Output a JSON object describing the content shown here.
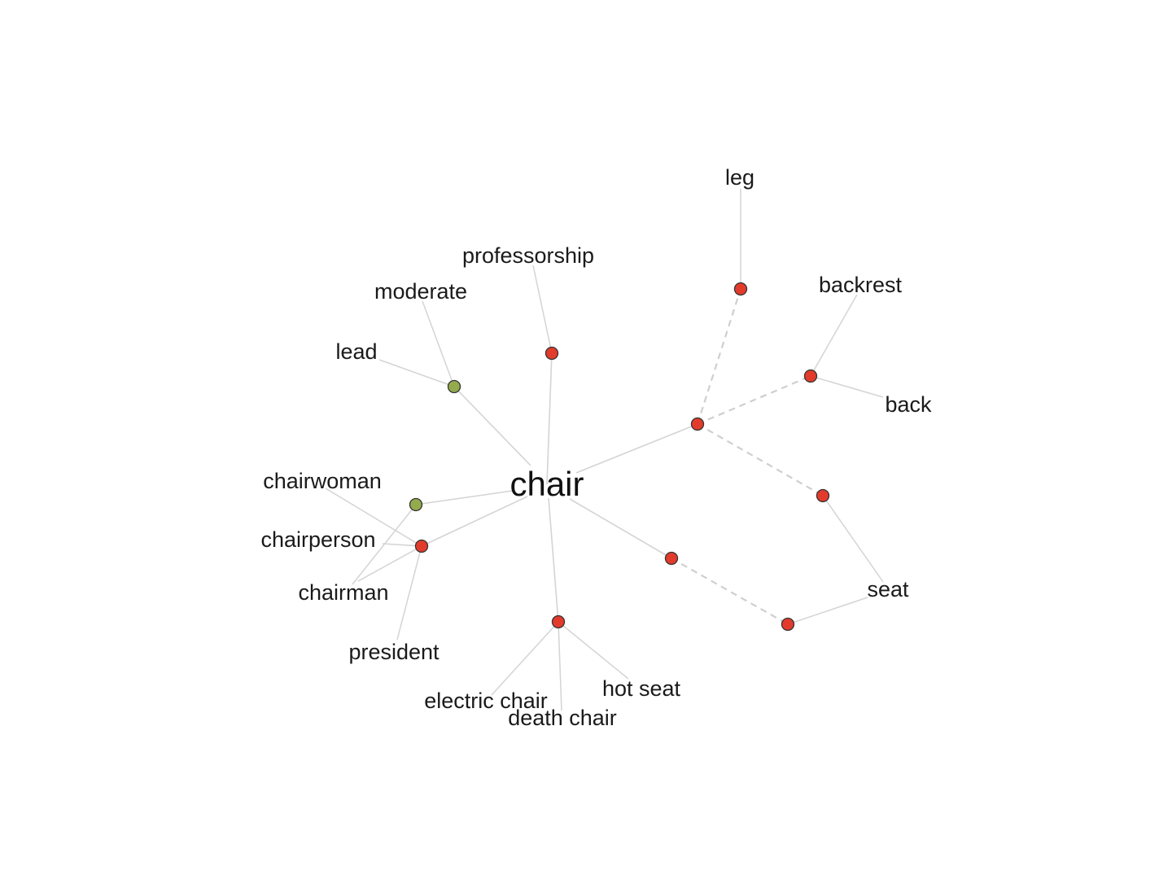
{
  "colors": {
    "red_node": "#e23b2c",
    "green_node": "#93ab4d"
  },
  "graph": {
    "center": {
      "label": "chair"
    },
    "nodes": [
      {
        "id": "n-professorship",
        "color": "red"
      },
      {
        "id": "n-moderate-lead",
        "color": "green"
      },
      {
        "id": "n-chairwoman",
        "color": "green"
      },
      {
        "id": "n-chairman",
        "color": "red"
      },
      {
        "id": "n-death",
        "color": "red"
      },
      {
        "id": "n-hub",
        "color": "red"
      },
      {
        "id": "n-leg",
        "color": "red"
      },
      {
        "id": "n-back",
        "color": "red"
      },
      {
        "id": "n-seat-upper",
        "color": "red"
      },
      {
        "id": "n-seat-mid",
        "color": "red"
      },
      {
        "id": "n-seat-lower",
        "color": "red"
      }
    ],
    "words": {
      "leg": "leg",
      "professorship": "professorship",
      "backrest": "backrest",
      "moderate": "moderate",
      "lead": "lead",
      "back": "back",
      "chairwoman": "chairwoman",
      "chairperson": "chairperson",
      "chairman": "chairman",
      "president": "president",
      "seat": "seat",
      "electric_chair": "electric chair",
      "death_chair": "death chair",
      "hot_seat": "hot seat"
    }
  }
}
